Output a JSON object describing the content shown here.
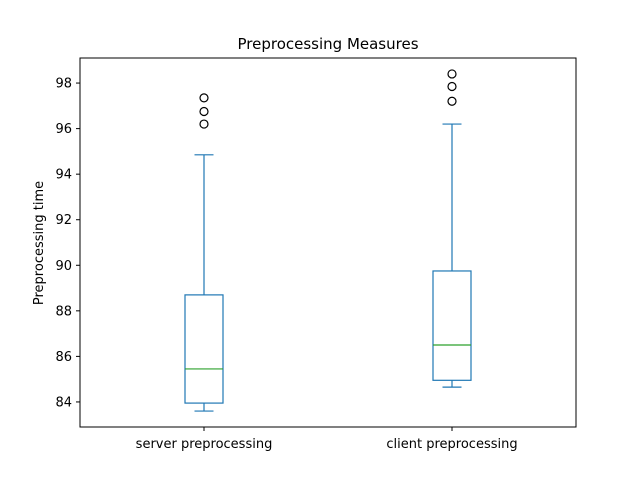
{
  "chart_data": {
    "type": "box",
    "title": "Preprocessing Measures",
    "xlabel": "",
    "ylabel": "Preprocessing time",
    "ylim": [
      82.9,
      99.1
    ],
    "yticks": [
      84,
      86,
      88,
      90,
      92,
      94,
      96,
      98
    ],
    "grid": false,
    "categories": [
      "server preprocessing",
      "client preprocessing"
    ],
    "boxes": [
      {
        "whisker_low": 83.6,
        "q1": 83.95,
        "median": 85.45,
        "q3": 88.7,
        "whisker_high": 94.85,
        "outliers": [
          96.2,
          96.75,
          97.35
        ]
      },
      {
        "whisker_low": 84.65,
        "q1": 84.95,
        "median": 86.5,
        "q3": 89.75,
        "whisker_high": 96.2,
        "outliers": [
          97.2,
          97.85,
          98.4
        ]
      }
    ],
    "colors": {
      "box": "#1f77b4",
      "median": "#2ca02c",
      "outlier_edge": "#000000"
    }
  }
}
